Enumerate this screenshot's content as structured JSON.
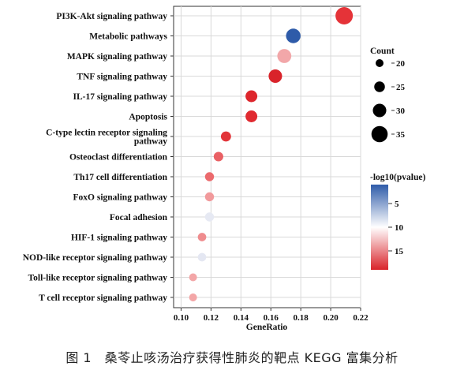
{
  "chart_data": {
    "type": "scatter",
    "subtype": "bubble",
    "xlabel": "GeneRatio",
    "ylabel": "",
    "xlim": [
      0.095,
      0.22
    ],
    "xticks": [
      "0.10",
      "0.12",
      "0.14",
      "0.16",
      "0.18",
      "0.20",
      "0.22"
    ],
    "grid": true,
    "legend_position": "right",
    "pathways": [
      {
        "name": "PI3K-Akt signaling pathway",
        "name_lines": [
          "PI3K-Akt signaling pathway"
        ],
        "gene_ratio": 0.209,
        "count": 37,
        "neg_log10_p": 17.5,
        "color": "#e53338"
      },
      {
        "name": "Metabolic pathways",
        "name_lines": [
          "Metabolic pathways"
        ],
        "gene_ratio": 0.175,
        "count": 32,
        "neg_log10_p": 2.5,
        "color": "#2e5ba9"
      },
      {
        "name": "MAPK signaling pathway",
        "name_lines": [
          "MAPK signaling pathway"
        ],
        "gene_ratio": 0.169,
        "count": 31,
        "neg_log10_p": 11.5,
        "color": "#f2a7a9"
      },
      {
        "name": "TNF signaling pathway",
        "name_lines": [
          "TNF signaling pathway"
        ],
        "gene_ratio": 0.163,
        "count": 30,
        "neg_log10_p": 18.5,
        "color": "#d9232a"
      },
      {
        "name": "IL-17 signaling pathway",
        "name_lines": [
          "IL-17 signaling pathway"
        ],
        "gene_ratio": 0.147,
        "count": 27,
        "neg_log10_p": 18.0,
        "color": "#dd262c"
      },
      {
        "name": "Apoptosis",
        "name_lines": [
          "Apoptosis"
        ],
        "gene_ratio": 0.147,
        "count": 27,
        "neg_log10_p": 17.5,
        "color": "#e02a30"
      },
      {
        "name": "C-type lectin receptor signaling pathway",
        "name_lines": [
          "C-type lectin receptor signaling",
          "pathway"
        ],
        "gene_ratio": 0.13,
        "count": 24,
        "neg_log10_p": 17.0,
        "color": "#e2353a"
      },
      {
        "name": "Osteoclast differentiation",
        "name_lines": [
          "Osteoclast differentiation"
        ],
        "gene_ratio": 0.125,
        "count": 23,
        "neg_log10_p": 14.5,
        "color": "#e96064"
      },
      {
        "name": "Th17 cell differentiation",
        "name_lines": [
          "Th17 cell differentiation"
        ],
        "gene_ratio": 0.119,
        "count": 22,
        "neg_log10_p": 14.0,
        "color": "#eb6a6d"
      },
      {
        "name": "FoxO signaling pathway",
        "name_lines": [
          "FoxO signaling pathway"
        ],
        "gene_ratio": 0.119,
        "count": 22,
        "neg_log10_p": 12.0,
        "color": "#f19a9c"
      },
      {
        "name": "Focal adhesion",
        "name_lines": [
          "Focal adhesion"
        ],
        "gene_ratio": 0.119,
        "count": 22,
        "neg_log10_p": 9.0,
        "color": "#e6e9f3"
      },
      {
        "name": "HIF-1 signaling pathway",
        "name_lines": [
          "HIF-1 signaling pathway"
        ],
        "gene_ratio": 0.114,
        "count": 21,
        "neg_log10_p": 13.5,
        "color": "#ef8c8e"
      },
      {
        "name": "NOD-like receptor signaling pathway",
        "name_lines": [
          "NOD-like receptor signaling pathway"
        ],
        "gene_ratio": 0.114,
        "count": 21,
        "neg_log10_p": 9.0,
        "color": "#e4e7f2"
      },
      {
        "name": "Toll-like receptor signaling pathway",
        "name_lines": [
          "Toll-like receptor signaling pathway"
        ],
        "gene_ratio": 0.108,
        "count": 20,
        "neg_log10_p": 12.5,
        "color": "#f3a6a7"
      },
      {
        "name": "T cell receptor signaling pathway",
        "name_lines": [
          "T cell receptor signaling pathway"
        ],
        "gene_ratio": 0.108,
        "count": 20,
        "neg_log10_p": 12.5,
        "color": "#f3a6a7"
      }
    ],
    "size_legend": {
      "title": "Count",
      "entries": [
        {
          "label": "20",
          "count": 20
        },
        {
          "label": "25",
          "count": 25
        },
        {
          "label": "30",
          "count": 30
        },
        {
          "label": "35",
          "count": 35
        }
      ]
    },
    "color_legend": {
      "title": "-log10(pvalue)",
      "ticks": [
        {
          "label": "5",
          "value": 5
        },
        {
          "label": "10",
          "value": 10
        },
        {
          "label": "15",
          "value": 15
        }
      ],
      "range": [
        1,
        19
      ],
      "low_color": "#2e5ba9",
      "mid_color": "#ffffff",
      "high_color": "#d9232a"
    }
  },
  "caption": "图 1　桑苓止咳汤治疗获得性肺炎的靶点 KEGG 富集分析"
}
